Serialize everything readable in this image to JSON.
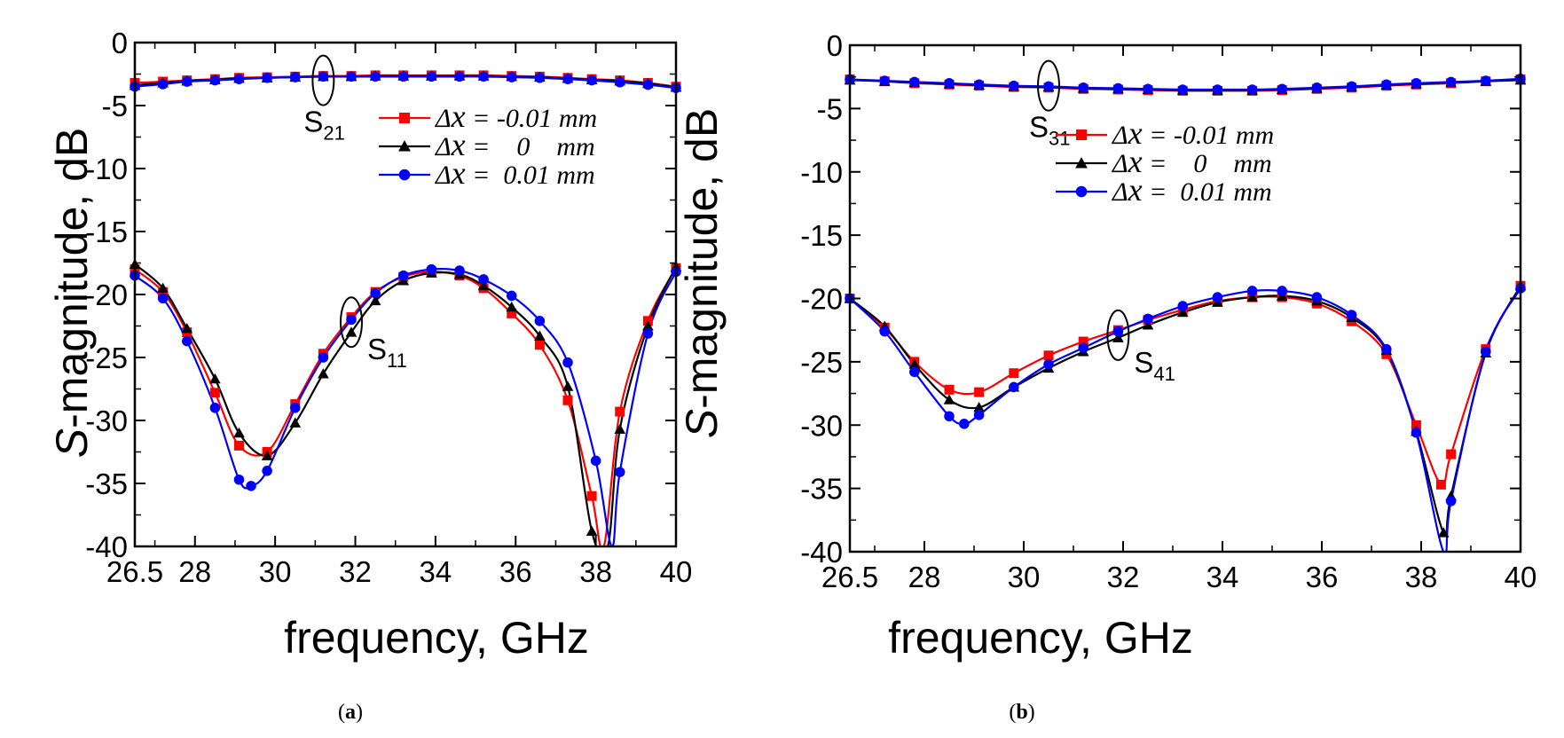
{
  "figure": {
    "panel_labels": [
      {
        "open": "(",
        "letter": "a",
        "close": ")"
      },
      {
        "open": "(",
        "letter": "b",
        "close": ")"
      }
    ]
  },
  "chart_data": [
    {
      "type": "line",
      "title": "",
      "xlabel": "frequency, GHz",
      "ylabel_italic": "S",
      "ylabel_rest": "-magnitude, dB",
      "xlim": [
        26.5,
        40
      ],
      "ylim": [
        -40,
        0
      ],
      "xticks": [
        26.5,
        28,
        30,
        32,
        34,
        36,
        38,
        40
      ],
      "xtick_labels": [
        "26.5",
        "28",
        "30",
        "32",
        "34",
        "36",
        "38",
        "40"
      ],
      "yticks": [
        0,
        -5,
        -10,
        -15,
        -20,
        -25,
        -30,
        -35,
        -40
      ],
      "ytick_labels": [
        "0",
        "-5",
        "-10",
        "-15",
        "-20",
        "-25",
        "-30",
        "-35",
        "-40"
      ],
      "legend": [
        {
          "symbol": "Δ",
          "var": "x",
          "text": " = -0.01 mm",
          "color": "#ff0000",
          "marker": "square"
        },
        {
          "symbol": "Δ",
          "var": "x",
          "text": " =    0    mm",
          "color": "#000000",
          "marker": "triangle"
        },
        {
          "symbol": "Δ",
          "var": "x",
          "text": " =  0.01 mm",
          "color": "#0000ff",
          "marker": "circle"
        }
      ],
      "annotations": [
        {
          "base": "S",
          "sub": "21",
          "at": [
            31.2,
            -3.0
          ]
        },
        {
          "base": "S",
          "sub": "11",
          "at": [
            31.9,
            -22.2
          ]
        }
      ],
      "curve_groups": [
        {
          "name": "S21",
          "series": [
            {
              "name": "Δx = -0.01 mm",
              "color": "#ff0000",
              "marker": "square",
              "x": [
                26.5,
                27.2,
                27.8,
                28.5,
                29.1,
                29.8,
                30.5,
                31.2,
                31.9,
                32.5,
                33.2,
                33.9,
                34.6,
                35.2,
                35.9,
                36.6,
                37.3,
                37.9,
                38.6,
                39.3,
                40.0
              ],
              "y": [
                -3.2,
                -3.1,
                -3.0,
                -2.9,
                -2.8,
                -2.75,
                -2.7,
                -2.65,
                -2.65,
                -2.6,
                -2.6,
                -2.6,
                -2.6,
                -2.6,
                -2.65,
                -2.7,
                -2.8,
                -2.9,
                -3.0,
                -3.2,
                -3.5
              ]
            },
            {
              "name": "Δx = 0 mm",
              "color": "#000000",
              "marker": "triangle",
              "x": [
                26.5,
                27.2,
                27.8,
                28.5,
                29.1,
                29.8,
                30.5,
                31.2,
                31.9,
                32.5,
                33.2,
                33.9,
                34.6,
                35.2,
                35.9,
                36.6,
                37.3,
                37.9,
                38.6,
                39.3,
                40.0
              ],
              "y": [
                -3.4,
                -3.2,
                -3.05,
                -2.95,
                -2.85,
                -2.8,
                -2.75,
                -2.7,
                -2.7,
                -2.65,
                -2.65,
                -2.65,
                -2.65,
                -2.65,
                -2.7,
                -2.75,
                -2.85,
                -2.95,
                -3.05,
                -3.25,
                -3.55
              ]
            },
            {
              "name": "Δx = 0.01 mm",
              "color": "#0000ff",
              "marker": "circle",
              "x": [
                26.5,
                27.2,
                27.8,
                28.5,
                29.1,
                29.8,
                30.5,
                31.2,
                31.9,
                32.5,
                33.2,
                33.9,
                34.6,
                35.2,
                35.9,
                36.6,
                37.3,
                37.9,
                38.6,
                39.3,
                40.0
              ],
              "y": [
                -3.5,
                -3.3,
                -3.1,
                -3.0,
                -2.9,
                -2.8,
                -2.75,
                -2.7,
                -2.7,
                -2.7,
                -2.7,
                -2.7,
                -2.7,
                -2.7,
                -2.75,
                -2.8,
                -2.9,
                -3.0,
                -3.15,
                -3.35,
                -3.6
              ]
            }
          ]
        },
        {
          "name": "S11",
          "series": [
            {
              "name": "Δx = -0.01 mm",
              "color": "#ff0000",
              "marker": "square",
              "x": [
                26.5,
                27.2,
                27.8,
                28.5,
                29.1,
                29.8,
                30.5,
                31.2,
                31.9,
                32.5,
                33.2,
                33.9,
                34.6,
                35.2,
                35.9,
                36.6,
                37.3,
                37.9,
                38.2,
                38.6,
                39.3,
                40.0
              ],
              "y": [
                -18.0,
                -19.8,
                -23.0,
                -27.8,
                -32.0,
                -32.5,
                -28.7,
                -24.7,
                -21.8,
                -19.8,
                -18.6,
                -18.2,
                -18.5,
                -19.5,
                -21.5,
                -24.0,
                -28.4,
                -36.0,
                -40.0,
                -29.3,
                -22.1,
                -17.9
              ]
            },
            {
              "name": "Δx = 0 mm",
              "color": "#000000",
              "marker": "triangle",
              "x": [
                26.5,
                27.2,
                27.8,
                28.5,
                29.1,
                29.8,
                30.5,
                31.2,
                31.9,
                32.5,
                33.2,
                33.9,
                34.6,
                35.2,
                35.9,
                36.6,
                37.3,
                37.9,
                38.3,
                38.6,
                39.3,
                40.0
              ],
              "y": [
                -17.6,
                -19.5,
                -22.7,
                -26.7,
                -31.0,
                -32.8,
                -30.2,
                -26.3,
                -23.0,
                -20.5,
                -18.9,
                -18.3,
                -18.4,
                -19.3,
                -21.0,
                -23.3,
                -27.3,
                -38.8,
                -40.0,
                -30.7,
                -22.5,
                -17.8
              ]
            },
            {
              "name": "Δx = 0.01 mm",
              "color": "#0000ff",
              "marker": "circle",
              "x": [
                26.5,
                27.2,
                27.8,
                28.5,
                29.1,
                29.4,
                29.8,
                30.5,
                31.2,
                31.9,
                32.5,
                33.2,
                33.9,
                34.6,
                35.2,
                35.9,
                36.6,
                37.3,
                38.0,
                38.4,
                38.6,
                39.3,
                40.0
              ],
              "y": [
                -18.5,
                -20.3,
                -23.7,
                -29.0,
                -34.7,
                -35.2,
                -34.0,
                -29.0,
                -25.0,
                -22.0,
                -19.9,
                -18.5,
                -18.0,
                -18.1,
                -18.8,
                -20.1,
                -22.1,
                -25.4,
                -33.2,
                -40.0,
                -34.1,
                -23.1,
                -18.2
              ]
            }
          ]
        }
      ]
    },
    {
      "type": "line",
      "title": "",
      "xlabel": "frequency, GHz",
      "ylabel_italic": "S",
      "ylabel_rest": "-magnitude, dB",
      "xlim": [
        26.5,
        40
      ],
      "ylim": [
        -40,
        0
      ],
      "xticks": [
        26.5,
        28,
        30,
        32,
        34,
        36,
        38,
        40
      ],
      "xtick_labels": [
        "26.5",
        "28",
        "30",
        "32",
        "34",
        "36",
        "38",
        "40"
      ],
      "yticks": [
        0,
        -5,
        -10,
        -15,
        -20,
        -25,
        -30,
        -35,
        -40
      ],
      "ytick_labels": [
        "0",
        "-5",
        "-10",
        "-15",
        "-20",
        "-25",
        "-30",
        "-35",
        "-40"
      ],
      "legend": [
        {
          "symbol": "Δ",
          "var": "x",
          "text": " = -0.01 mm",
          "color": "#ff0000",
          "marker": "square"
        },
        {
          "symbol": "Δ",
          "var": "x",
          "text": " =    0    mm",
          "color": "#000000",
          "marker": "triangle"
        },
        {
          "symbol": "Δ",
          "var": "x",
          "text": " =  0.01 mm",
          "color": "#0000ff",
          "marker": "circle"
        }
      ],
      "annotations": [
        {
          "base": "S",
          "sub": "31",
          "at": [
            30.5,
            -3.2
          ]
        },
        {
          "base": "S",
          "sub": "41",
          "at": [
            31.9,
            -22.9
          ]
        }
      ],
      "curve_groups": [
        {
          "name": "S31",
          "series": [
            {
              "name": "Δx = -0.01 mm",
              "color": "#ff0000",
              "marker": "square",
              "x": [
                26.5,
                27.2,
                27.8,
                28.5,
                29.1,
                29.8,
                30.5,
                31.2,
                31.9,
                32.5,
                33.2,
                33.9,
                34.6,
                35.2,
                35.9,
                36.6,
                37.3,
                37.9,
                38.6,
                39.3,
                40.0
              ],
              "y": [
                -2.7,
                -2.85,
                -3.0,
                -3.1,
                -3.2,
                -3.3,
                -3.35,
                -3.45,
                -3.5,
                -3.55,
                -3.6,
                -3.6,
                -3.6,
                -3.55,
                -3.45,
                -3.35,
                -3.2,
                -3.1,
                -3.0,
                -2.85,
                -2.7
              ]
            },
            {
              "name": "Δx = 0 mm",
              "color": "#000000",
              "marker": "triangle",
              "x": [
                26.5,
                27.2,
                27.8,
                28.5,
                29.1,
                29.8,
                30.5,
                31.2,
                31.9,
                32.5,
                33.2,
                33.9,
                34.6,
                35.2,
                35.9,
                36.6,
                37.3,
                37.9,
                38.6,
                39.3,
                40.0
              ],
              "y": [
                -2.75,
                -2.85,
                -2.95,
                -3.05,
                -3.15,
                -3.25,
                -3.3,
                -3.4,
                -3.45,
                -3.5,
                -3.55,
                -3.55,
                -3.55,
                -3.5,
                -3.4,
                -3.3,
                -3.15,
                -3.05,
                -2.95,
                -2.85,
                -2.75
              ]
            },
            {
              "name": "Δx = 0.01 mm",
              "color": "#0000ff",
              "marker": "circle",
              "x": [
                26.5,
                27.2,
                27.8,
                28.5,
                29.1,
                29.8,
                30.5,
                31.2,
                31.9,
                32.5,
                33.2,
                33.9,
                34.6,
                35.2,
                35.9,
                36.6,
                37.3,
                37.9,
                38.6,
                39.3,
                40.0
              ],
              "y": [
                -2.7,
                -2.8,
                -2.9,
                -3.0,
                -3.1,
                -3.2,
                -3.25,
                -3.35,
                -3.4,
                -3.45,
                -3.5,
                -3.5,
                -3.5,
                -3.45,
                -3.35,
                -3.25,
                -3.1,
                -3.0,
                -2.9,
                -2.8,
                -2.65
              ]
            }
          ]
        },
        {
          "name": "S41",
          "series": [
            {
              "name": "Δx = -0.01 mm",
              "color": "#ff0000",
              "marker": "square",
              "x": [
                26.5,
                27.2,
                27.8,
                28.5,
                29.1,
                29.8,
                30.5,
                31.2,
                31.9,
                32.5,
                33.2,
                33.9,
                34.6,
                35.2,
                35.9,
                36.6,
                37.3,
                37.9,
                38.4,
                38.6,
                39.3,
                40.0
              ],
              "y": [
                -20.0,
                -22.3,
                -25.0,
                -27.2,
                -27.4,
                -25.9,
                -24.5,
                -23.4,
                -22.5,
                -21.7,
                -20.9,
                -20.2,
                -19.9,
                -19.9,
                -20.4,
                -21.8,
                -24.4,
                -30.0,
                -34.7,
                -32.3,
                -24.0,
                -19.0
              ]
            },
            {
              "name": "Δx = 0 mm",
              "color": "#000000",
              "marker": "triangle",
              "x": [
                26.5,
                27.2,
                27.8,
                28.5,
                29.1,
                29.8,
                30.5,
                31.2,
                31.9,
                32.5,
                33.2,
                33.9,
                34.6,
                35.2,
                35.9,
                36.6,
                37.3,
                37.9,
                38.45,
                38.6,
                39.3,
                40.0
              ],
              "y": [
                -20.0,
                -22.2,
                -25.2,
                -28.0,
                -28.6,
                -27.0,
                -25.5,
                -24.2,
                -23.1,
                -22.1,
                -21.1,
                -20.3,
                -19.9,
                -19.8,
                -20.2,
                -21.5,
                -24.1,
                -30.5,
                -38.5,
                -35.6,
                -24.3,
                -19.0
              ]
            },
            {
              "name": "Δx = 0.01 mm",
              "color": "#0000ff",
              "marker": "circle",
              "x": [
                26.5,
                27.2,
                27.8,
                28.5,
                28.8,
                29.1,
                29.8,
                30.5,
                31.2,
                31.9,
                32.5,
                33.2,
                33.9,
                34.6,
                35.2,
                35.9,
                36.6,
                37.3,
                37.9,
                38.45,
                38.6,
                39.3,
                40.0
              ],
              "y": [
                -20.0,
                -22.6,
                -25.8,
                -29.3,
                -29.9,
                -29.2,
                -27.0,
                -25.2,
                -23.9,
                -22.6,
                -21.6,
                -20.6,
                -19.9,
                -19.4,
                -19.4,
                -19.9,
                -21.3,
                -24.0,
                -30.6,
                -40.0,
                -36.0,
                -24.2,
                -19.2
              ]
            }
          ]
        }
      ]
    }
  ]
}
